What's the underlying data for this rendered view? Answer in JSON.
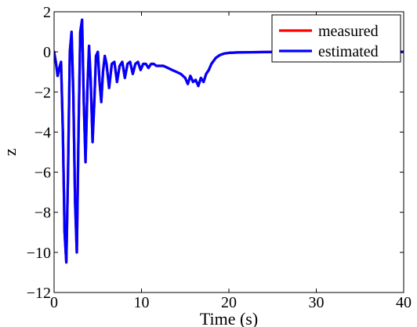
{
  "chart_data": {
    "type": "line",
    "title": "",
    "xlabel": "Time (s)",
    "ylabel": "z",
    "xlim": [
      0,
      40
    ],
    "ylim": [
      -12,
      2
    ],
    "xticks": [
      0,
      10,
      20,
      30,
      40
    ],
    "yticks": [
      -12,
      -10,
      -8,
      -6,
      -4,
      -2,
      0,
      2
    ],
    "xtick_labels": [
      "0",
      "10",
      "20",
      "30",
      "40"
    ],
    "ytick_labels": [
      "−12",
      "−10",
      "−8",
      "−6",
      "−4",
      "−2",
      "0",
      "2"
    ],
    "grid": false,
    "legend_position": "top-right",
    "series": [
      {
        "name": "measured",
        "color": "#ff0000",
        "x": [
          0,
          0.2,
          0.4,
          0.6,
          0.8,
          1.0,
          1.2,
          1.4,
          1.6,
          1.8,
          2.0,
          2.2,
          2.4,
          2.6,
          2.8,
          3.0,
          3.2,
          3.4,
          3.6,
          3.8,
          4.0,
          4.2,
          4.4,
          4.6,
          4.8,
          5.0,
          5.2,
          5.4,
          5.6,
          5.8,
          6.0,
          6.3,
          6.6,
          6.9,
          7.2,
          7.5,
          7.8,
          8.1,
          8.4,
          8.7,
          9.0,
          9.3,
          9.6,
          9.9,
          10.2,
          10.5,
          10.8,
          11.1,
          11.4,
          11.7,
          12.0,
          12.5,
          13.0,
          13.5,
          14.0,
          14.5,
          15.0,
          15.3,
          15.6,
          15.9,
          16.2,
          16.5,
          16.8,
          17.1,
          17.4,
          17.7,
          18.0,
          18.5,
          19.0,
          19.5,
          20.0,
          21.0,
          22.0,
          24.0,
          26.0,
          28.0,
          30.0,
          32.0,
          34.0,
          36.0,
          38.0,
          40.0
        ],
        "values": [
          0.0,
          -0.5,
          -1.2,
          -0.8,
          -0.5,
          -4.0,
          -9.0,
          -10.5,
          -6.0,
          0.0,
          1.0,
          -2.0,
          -7.5,
          -10.0,
          -4.0,
          1.0,
          1.6,
          -2.5,
          -5.5,
          -2.0,
          0.3,
          -1.5,
          -4.5,
          -2.5,
          -0.2,
          0.0,
          -1.5,
          -2.5,
          -1.0,
          -0.2,
          -0.6,
          -1.8,
          -0.6,
          -0.5,
          -1.5,
          -0.7,
          -0.5,
          -1.3,
          -0.6,
          -0.5,
          -1.1,
          -0.6,
          -0.5,
          -0.9,
          -0.6,
          -0.6,
          -0.8,
          -0.6,
          -0.6,
          -0.7,
          -0.7,
          -0.7,
          -0.8,
          -0.9,
          -1.0,
          -1.1,
          -1.3,
          -1.6,
          -1.2,
          -1.5,
          -1.4,
          -1.7,
          -1.3,
          -1.5,
          -1.1,
          -0.9,
          -0.6,
          -0.3,
          -0.15,
          -0.08,
          -0.05,
          -0.03,
          -0.02,
          -0.01,
          0.0,
          0.0,
          0.0,
          0.0,
          0.0,
          0.0,
          0.0,
          0.0
        ]
      },
      {
        "name": "estimated",
        "color": "#0000ff",
        "x": [
          0,
          0.2,
          0.4,
          0.6,
          0.8,
          1.0,
          1.2,
          1.4,
          1.6,
          1.8,
          2.0,
          2.2,
          2.4,
          2.6,
          2.8,
          3.0,
          3.2,
          3.4,
          3.6,
          3.8,
          4.0,
          4.2,
          4.4,
          4.6,
          4.8,
          5.0,
          5.2,
          5.4,
          5.6,
          5.8,
          6.0,
          6.3,
          6.6,
          6.9,
          7.2,
          7.5,
          7.8,
          8.1,
          8.4,
          8.7,
          9.0,
          9.3,
          9.6,
          9.9,
          10.2,
          10.5,
          10.8,
          11.1,
          11.4,
          11.7,
          12.0,
          12.5,
          13.0,
          13.5,
          14.0,
          14.5,
          15.0,
          15.3,
          15.6,
          15.9,
          16.2,
          16.5,
          16.8,
          17.1,
          17.4,
          17.7,
          18.0,
          18.5,
          19.0,
          19.5,
          20.0,
          21.0,
          22.0,
          24.0,
          26.0,
          28.0,
          30.0,
          32.0,
          34.0,
          36.0,
          38.0,
          40.0
        ],
        "values": [
          0.0,
          -0.5,
          -1.2,
          -0.8,
          -0.5,
          -4.0,
          -9.0,
          -10.5,
          -6.0,
          0.0,
          1.0,
          -2.0,
          -7.5,
          -10.0,
          -4.0,
          1.0,
          1.6,
          -2.5,
          -5.5,
          -2.0,
          0.3,
          -1.5,
          -4.5,
          -2.5,
          -0.2,
          0.0,
          -1.5,
          -2.5,
          -1.0,
          -0.2,
          -0.6,
          -1.8,
          -0.6,
          -0.5,
          -1.5,
          -0.7,
          -0.5,
          -1.3,
          -0.6,
          -0.5,
          -1.1,
          -0.6,
          -0.5,
          -0.9,
          -0.6,
          -0.6,
          -0.8,
          -0.6,
          -0.6,
          -0.7,
          -0.7,
          -0.7,
          -0.8,
          -0.9,
          -1.0,
          -1.1,
          -1.3,
          -1.6,
          -1.2,
          -1.5,
          -1.4,
          -1.7,
          -1.3,
          -1.5,
          -1.1,
          -0.9,
          -0.6,
          -0.3,
          -0.15,
          -0.08,
          -0.05,
          -0.03,
          -0.02,
          -0.01,
          0.0,
          0.0,
          0.0,
          0.0,
          0.0,
          0.0,
          0.0,
          0.0
        ]
      }
    ]
  }
}
